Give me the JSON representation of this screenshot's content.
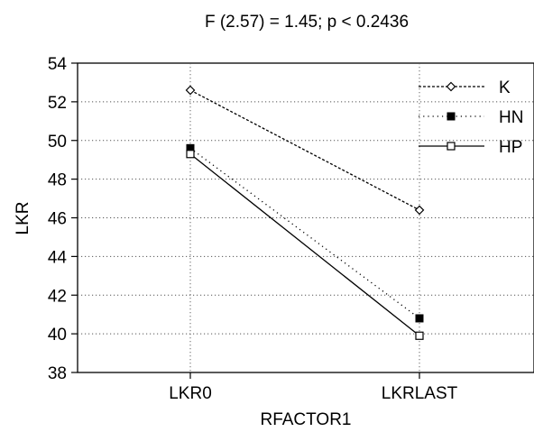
{
  "chart_data": {
    "type": "line",
    "title": "F (2.57) = 1.45; p < 0.2436",
    "xlabel": "RFACTOR1",
    "ylabel": "LKR",
    "categories": [
      "LKR0",
      "LKRLAST"
    ],
    "y_tick_labels": [
      "38",
      "40",
      "42",
      "44",
      "46",
      "48",
      "50",
      "52",
      "54"
    ],
    "ylim": [
      38,
      54
    ],
    "grid": true,
    "legend_position": "top-right",
    "series": [
      {
        "name": "K",
        "values": [
          52.6,
          46.4
        ],
        "line": "dashed",
        "marker": "diamond-open"
      },
      {
        "name": "HN",
        "values": [
          49.6,
          40.8
        ],
        "line": "dotted",
        "marker": "square-filled"
      },
      {
        "name": "HP",
        "values": [
          49.3,
          39.9
        ],
        "line": "solid",
        "marker": "square-open"
      }
    ]
  }
}
